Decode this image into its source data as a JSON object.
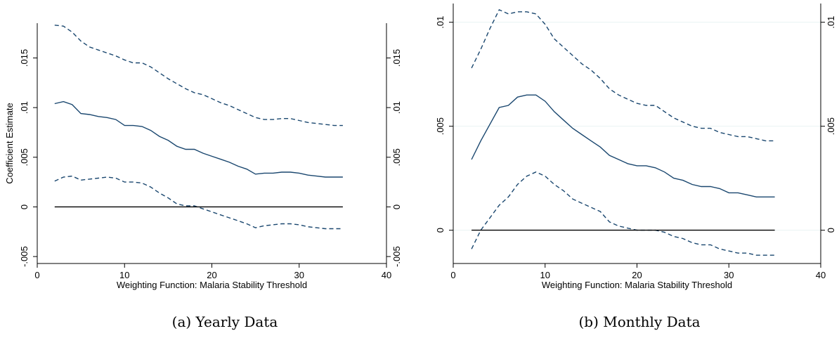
{
  "figure": {
    "captions": [
      "(a) Yearly Data",
      "(b) Monthly Data"
    ]
  },
  "colors": {
    "series": "#1a476f",
    "zero_line": "#000000",
    "axis": "#000000",
    "grid": "#eaf2f3"
  },
  "chart_data": [
    {
      "type": "line",
      "caption": "(a) Yearly Data",
      "xlabel": "Weighting Function: Malaria Stability Threshold",
      "ylabel": "Coefficient Estimate",
      "xlim": [
        0,
        40
      ],
      "ylim": [
        -0.0057,
        0.0185
      ],
      "x_ticks": [
        0,
        10,
        20,
        30,
        40
      ],
      "x_tick_labels": [
        "0",
        "10",
        "20",
        "30",
        "40"
      ],
      "y_ticks": [
        -0.005,
        0,
        0.005,
        0.01,
        0.015
      ],
      "y_tick_labels": [
        "-.005",
        "0",
        ".005",
        ".01",
        ".015"
      ],
      "right_axis": true,
      "grid": false,
      "x": [
        2,
        3,
        4,
        5,
        6,
        7,
        8,
        9,
        10,
        11,
        12,
        13,
        14,
        15,
        16,
        17,
        18,
        19,
        20,
        21,
        22,
        23,
        24,
        25,
        26,
        27,
        28,
        29,
        30,
        31,
        32,
        33,
        34,
        35
      ],
      "series": [
        {
          "style": "dashed",
          "values": [
            0.0183,
            0.0182,
            0.0176,
            0.0167,
            0.0161,
            0.0158,
            0.0155,
            0.0152,
            0.0148,
            0.0145,
            0.0145,
            0.0141,
            0.0135,
            0.0129,
            0.0124,
            0.0119,
            0.0115,
            0.0113,
            0.0109,
            0.0105,
            0.0102,
            0.0098,
            0.0094,
            0.009,
            0.0088,
            0.0088,
            0.0089,
            0.0089,
            0.0087,
            0.0085,
            0.0084,
            0.0083,
            0.0082,
            0.0082
          ]
        },
        {
          "style": "solid",
          "values": [
            0.0104,
            0.0106,
            0.0103,
            0.0094,
            0.0093,
            0.0091,
            0.009,
            0.0088,
            0.0082,
            0.0082,
            0.0081,
            0.0077,
            0.0071,
            0.0067,
            0.0061,
            0.0058,
            0.0058,
            0.0054,
            0.0051,
            0.0048,
            0.0045,
            0.0041,
            0.0038,
            0.0033,
            0.0034,
            0.0034,
            0.0035,
            0.0035,
            0.0034,
            0.0032,
            0.0031,
            0.003,
            0.003,
            0.003
          ]
        },
        {
          "style": "dashed",
          "values": [
            0.0026,
            0.003,
            0.0031,
            0.0027,
            0.0028,
            0.0029,
            0.003,
            0.0029,
            0.0025,
            0.0025,
            0.0024,
            0.002,
            0.0014,
            0.0009,
            0.0003,
            0.0001,
            0.0001,
            -0.0002,
            -0.0005,
            -0.0008,
            -0.0011,
            -0.0014,
            -0.0017,
            -0.0021,
            -0.0019,
            -0.0018,
            -0.0017,
            -0.0017,
            -0.0018,
            -0.002,
            -0.0021,
            -0.0022,
            -0.0022,
            -0.0022
          ]
        },
        {
          "style": "zero",
          "values": [
            0,
            0,
            0,
            0,
            0,
            0,
            0,
            0,
            0,
            0,
            0,
            0,
            0,
            0,
            0,
            0,
            0,
            0,
            0,
            0,
            0,
            0,
            0,
            0,
            0,
            0,
            0,
            0,
            0,
            0,
            0,
            0,
            0,
            0
          ]
        }
      ]
    },
    {
      "type": "line",
      "caption": "(b) Monthly Data",
      "xlabel": "Weighting Function: Malaria Stability Threshold",
      "ylabel": "",
      "xlim": [
        0,
        40
      ],
      "ylim": [
        -0.0016,
        0.0109
      ],
      "x_ticks": [
        0,
        10,
        20,
        30,
        40
      ],
      "x_tick_labels": [
        "0",
        "10",
        "20",
        "30",
        "40"
      ],
      "y_ticks": [
        0,
        0.005,
        0.01
      ],
      "y_tick_labels": [
        "0",
        ".005",
        ".01"
      ],
      "right_axis": true,
      "grid": true,
      "x": [
        2,
        3,
        4,
        5,
        6,
        7,
        8,
        9,
        10,
        11,
        12,
        13,
        14,
        15,
        16,
        17,
        18,
        19,
        20,
        21,
        22,
        23,
        24,
        25,
        26,
        27,
        28,
        29,
        30,
        31,
        32,
        33,
        34,
        35
      ],
      "series": [
        {
          "style": "dashed",
          "values": [
            0.0078,
            0.0087,
            0.0097,
            0.0106,
            0.0104,
            0.0105,
            0.0105,
            0.0104,
            0.0099,
            0.0092,
            0.0088,
            0.0084,
            0.008,
            0.0077,
            0.0073,
            0.0068,
            0.0065,
            0.0063,
            0.0061,
            0.006,
            0.006,
            0.0057,
            0.0054,
            0.0052,
            0.005,
            0.0049,
            0.0049,
            0.0047,
            0.0046,
            0.0045,
            0.0045,
            0.0044,
            0.0043,
            0.0043
          ]
        },
        {
          "style": "solid",
          "values": [
            0.0034,
            0.0043,
            0.0051,
            0.0059,
            0.006,
            0.0064,
            0.0065,
            0.0065,
            0.0062,
            0.0057,
            0.0053,
            0.0049,
            0.0046,
            0.0043,
            0.004,
            0.0036,
            0.0034,
            0.0032,
            0.0031,
            0.0031,
            0.003,
            0.0028,
            0.0025,
            0.0024,
            0.0022,
            0.0021,
            0.0021,
            0.002,
            0.0018,
            0.0018,
            0.0017,
            0.0016,
            0.0016,
            0.0016
          ]
        },
        {
          "style": "dashed",
          "values": [
            -0.0009,
            0,
            0.0006,
            0.0012,
            0.0016,
            0.0022,
            0.0026,
            0.0028,
            0.0026,
            0.0022,
            0.0019,
            0.0015,
            0.0013,
            0.0011,
            0.0009,
            0.0004,
            0.0002,
            0.0001,
            0,
            0,
            0,
            -0.0001,
            -0.0003,
            -0.0004,
            -0.0006,
            -0.0007,
            -0.0007,
            -0.0009,
            -0.001,
            -0.0011,
            -0.0011,
            -0.0012,
            -0.0012,
            -0.0012
          ]
        },
        {
          "style": "zero",
          "values": [
            0,
            0,
            0,
            0,
            0,
            0,
            0,
            0,
            0,
            0,
            0,
            0,
            0,
            0,
            0,
            0,
            0,
            0,
            0,
            0,
            0,
            0,
            0,
            0,
            0,
            0,
            0,
            0,
            0,
            0,
            0,
            0,
            0,
            0
          ]
        }
      ]
    }
  ]
}
